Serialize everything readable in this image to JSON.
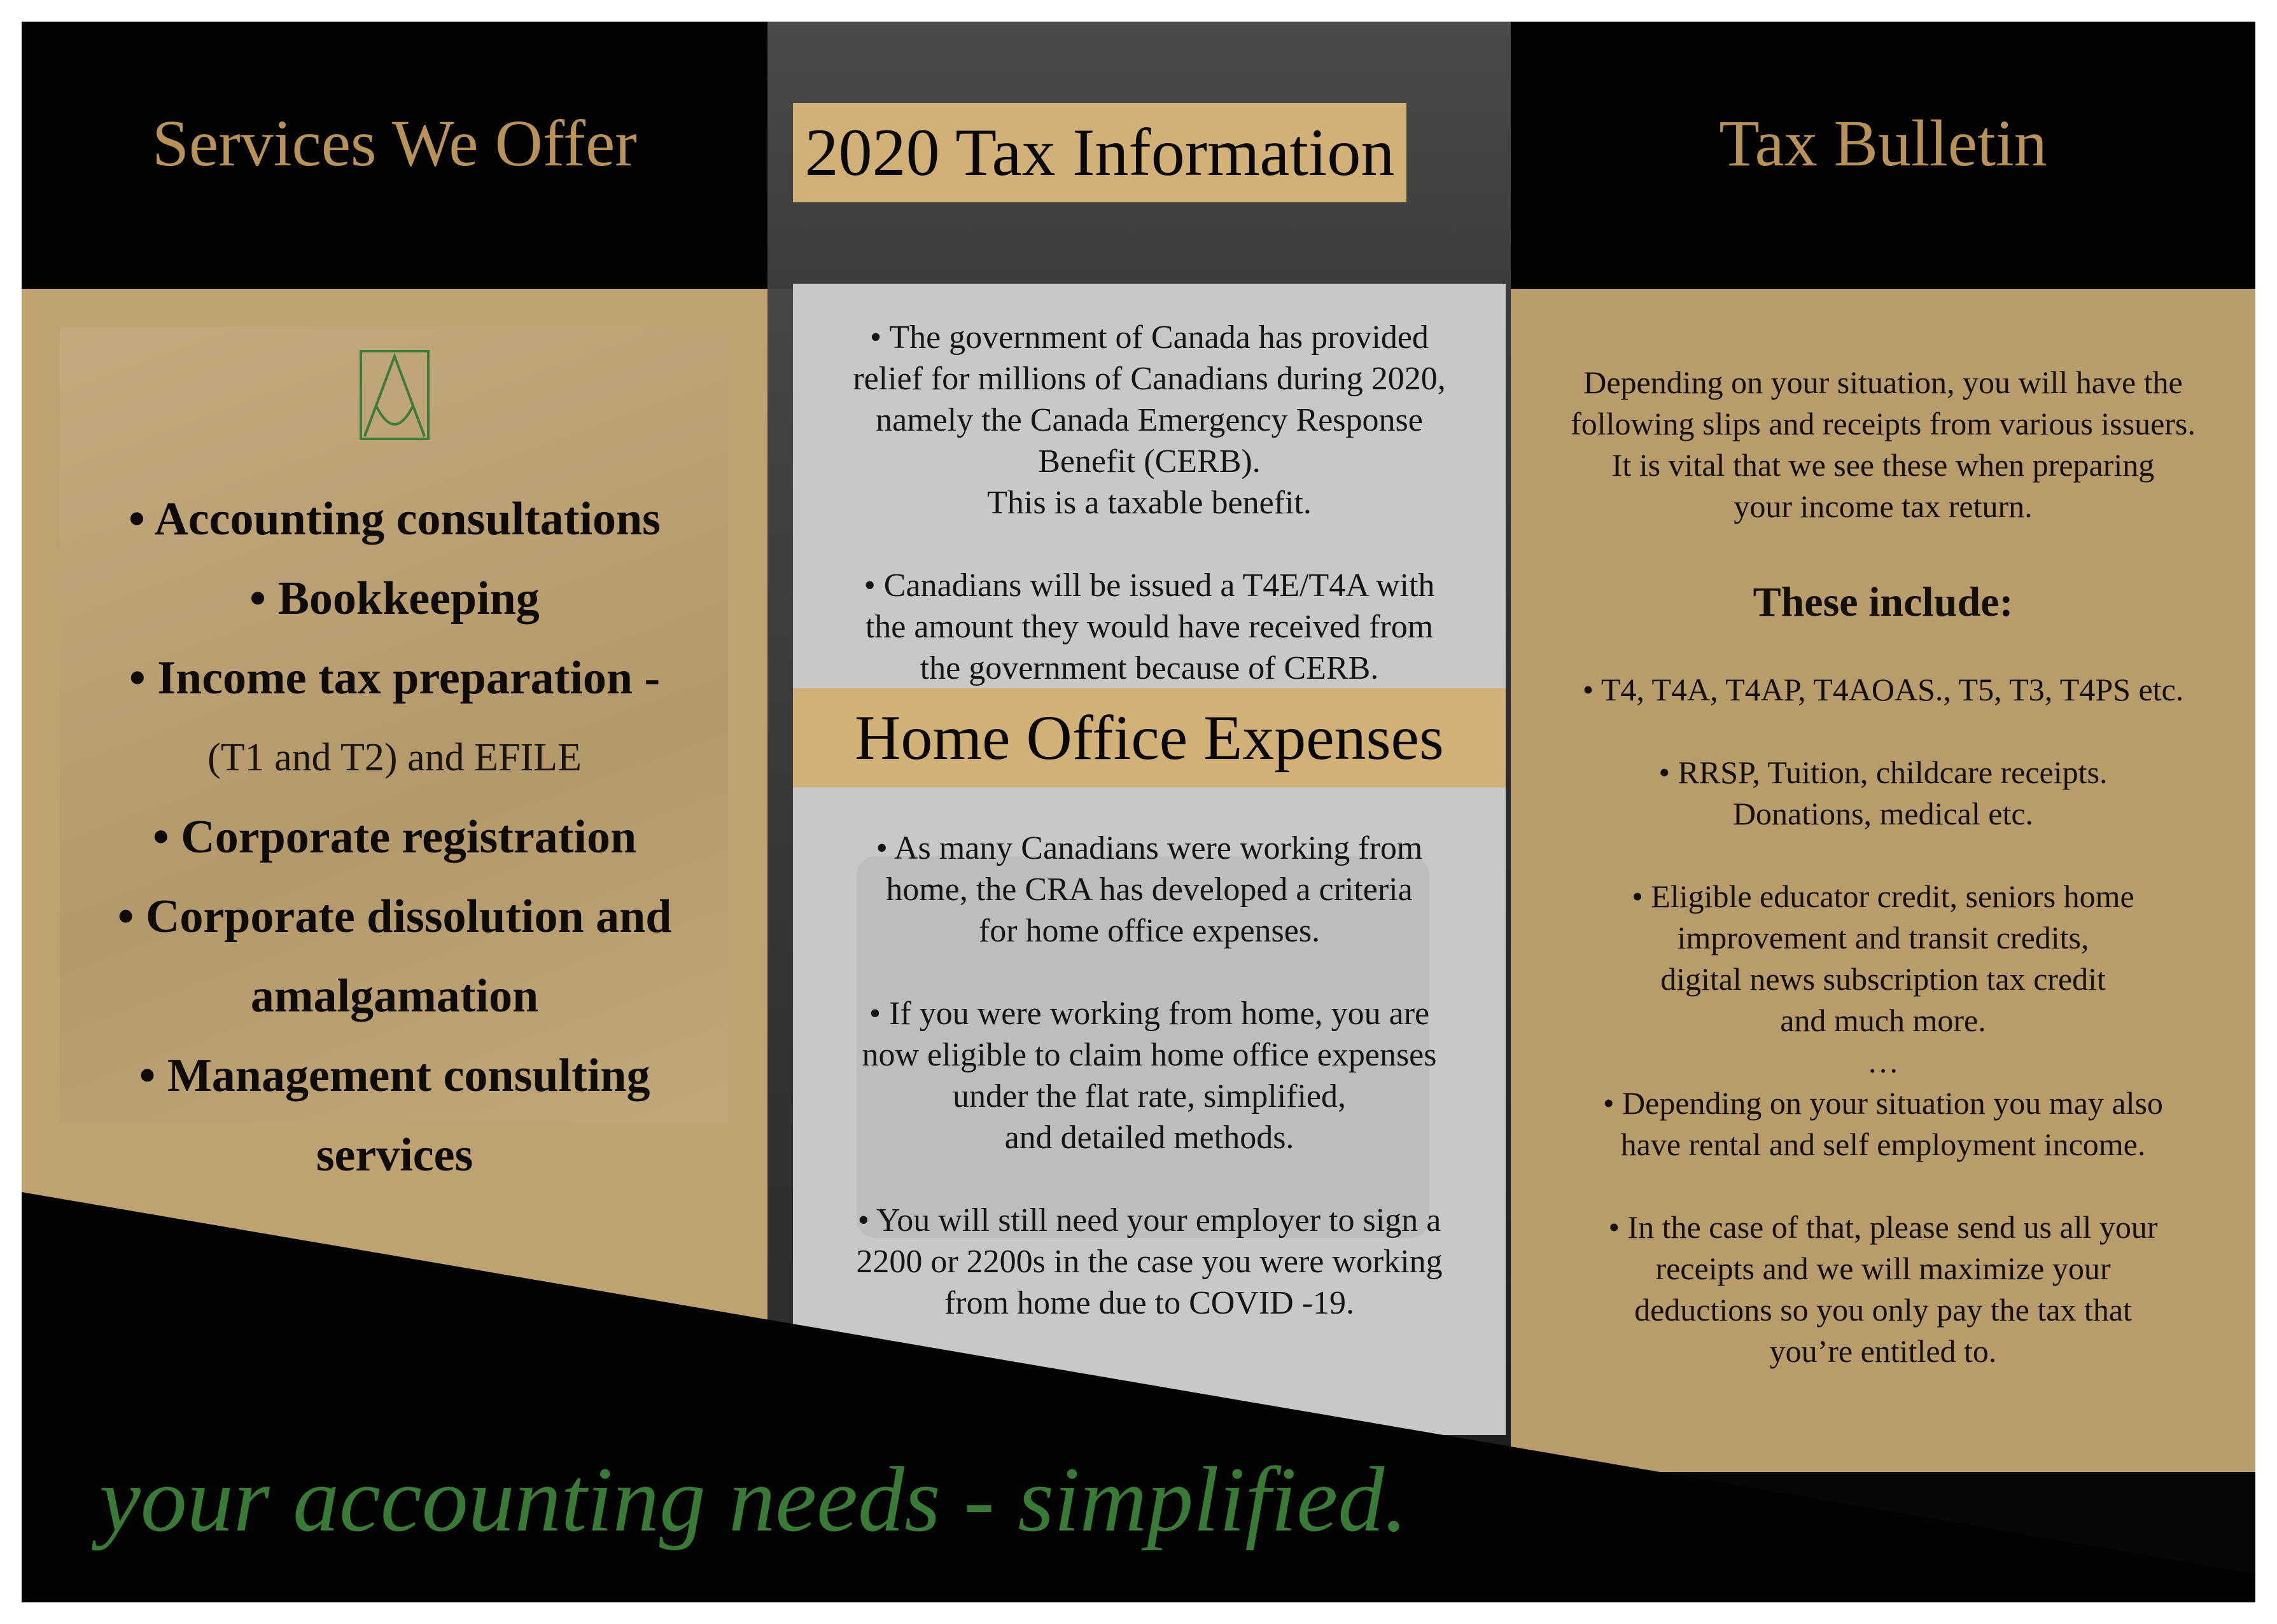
{
  "left": {
    "title": "Services We Offer",
    "services": [
      {
        "text": "• Accounting consultations",
        "style": "bold"
      },
      {
        "text": "• Bookkeeping",
        "style": "bold"
      },
      {
        "text": "• Income tax preparation -",
        "style": "bold"
      },
      {
        "text": "(T1 and T2) and EFILE",
        "style": "normal"
      },
      {
        "text": "• Corporate registration",
        "style": "bold"
      },
      {
        "text": "• Corporate dissolution and",
        "style": "bold"
      },
      {
        "text": "amalgamation",
        "style": "bold"
      },
      {
        "text": "• Management consulting",
        "style": "bold"
      },
      {
        "text": "services",
        "style": "bold"
      }
    ],
    "logo_icon": "monogram-logo-icon",
    "accent_color": "#b9925a",
    "panel_color": "#bea272"
  },
  "center": {
    "title": "2020 Tax Information",
    "cerb_paragraph": [
      "• The government of Canada has provided",
      "relief for millions of Canadians during 2020,",
      "namely the Canada Emergency Response",
      "Benefit (CERB).",
      "This is a taxable benefit."
    ],
    "t4e_paragraph": [
      "• Canadians will be issued a T4E/T4A with",
      "the amount they would have received from",
      "the government because of CERB."
    ],
    "home_title": "Home Office Expenses",
    "home_paragraphs": [
      [
        "• As many Canadians were working from",
        "home, the CRA has developed a criteria",
        "for home office expenses."
      ],
      [
        "• If you were working from home, you are",
        "now eligible to claim home office expenses",
        "under the flat rate, simplified,",
        "and detailed methods."
      ],
      [
        "• You will still need your employer to sign a",
        "2200 or 2200s in the case you were working",
        "from home due to COVID -19."
      ]
    ],
    "title_box_color": "#d2b178",
    "card_color": "#c9c8c9"
  },
  "right": {
    "title": "Tax Bulletin",
    "intro": [
      "Depending on your situation, you will have the",
      "following slips and receipts from various issuers.",
      "It is vital that we see these when preparing",
      "your income tax return."
    ],
    "include_heading": "These include:",
    "items": [
      [
        "• T4, T4A, T4AP, T4AOAS., T5, T3, T4PS etc."
      ],
      [
        "• RRSP, Tuition, childcare receipts.",
        "Donations, medical etc."
      ],
      [
        "• Eligible educator credit, seniors home",
        "improvement and transit credits,",
        "digital news subscription tax credit",
        "and much more.",
        "…"
      ],
      [
        "• Depending on your situation you may also",
        "have rental and self employment income."
      ],
      [
        "• In the case of that, please send us all your",
        "receipts and we will maximize your",
        "deductions so you only pay the tax that",
        "you’re entitled to."
      ]
    ],
    "panel_color": "#b99c6b"
  },
  "footer": {
    "tagline": "your accounting needs - simplified.",
    "tagline_color": "#3a7a37"
  }
}
